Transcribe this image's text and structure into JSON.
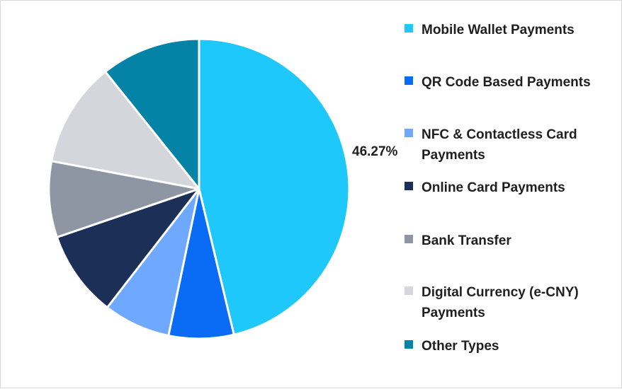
{
  "chart_data": {
    "type": "pie",
    "title": "",
    "slices": [
      {
        "label": "Mobile Wallet Payments",
        "value": 46.27,
        "color": "#1ec8fa"
      },
      {
        "label": "QR Code Based Payments",
        "value": 7.0,
        "color": "#0a6cf5"
      },
      {
        "label": "NFC & Contactless Card Payments",
        "value": 7.2,
        "color": "#6fa8ff"
      },
      {
        "label": "Online Card Payments",
        "value": 9.3,
        "color": "#1c2f56"
      },
      {
        "label": "Bank Transfer",
        "value": 8.2,
        "color": "#8f96a3"
      },
      {
        "label": "Digital Currency (e-CNY) Payments",
        "value": 11.3,
        "color": "#d5d6db"
      },
      {
        "label": "Other Types",
        "value": 10.73,
        "color": "#0583a6"
      }
    ],
    "data_labels": [
      "46.27%"
    ],
    "legend_position": "right",
    "start_angle_deg": 0,
    "direction": "clockwise"
  }
}
